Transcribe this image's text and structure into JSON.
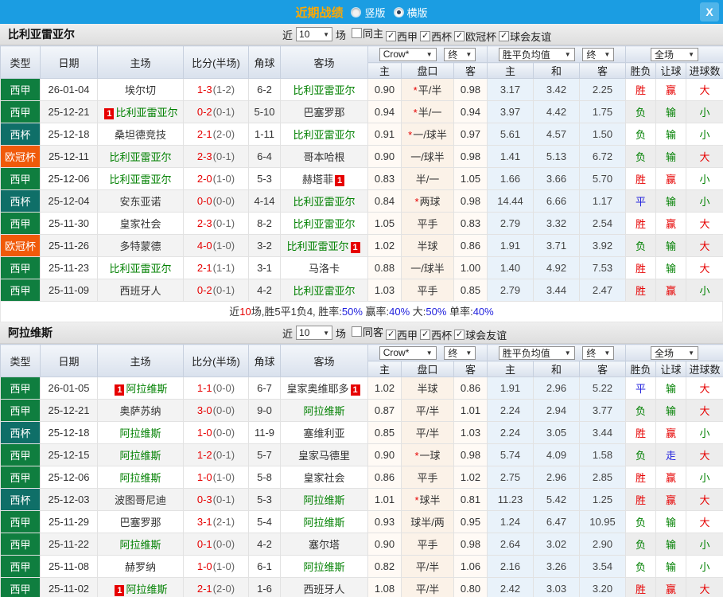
{
  "titlebar": {
    "title": "近期战绩",
    "radios": [
      {
        "label": "竖版",
        "selected": false
      },
      {
        "label": "横版",
        "selected": true
      }
    ],
    "close_icon": "X"
  },
  "colors": {
    "type": {
      "西甲": "#0F7E3F",
      "西杯": "#0F6F68",
      "欧冠杯": "#F05A0A"
    },
    "result": {
      "胜": "#E60000",
      "平": "#2222DD",
      "负": "#008000",
      "赢": "#E60000",
      "走": "#2222DD",
      "输": "#008000",
      "大": "#E60000",
      "小": "#008000"
    }
  },
  "table_head": {
    "cols": [
      "类型",
      "日期",
      "主场",
      "比分(半场)",
      "角球",
      "客场"
    ],
    "sub": [
      "主",
      "盘口",
      "客",
      "主",
      "和",
      "客",
      "胜负",
      "让球",
      "进球数"
    ],
    "selects": {
      "odds": "Crow*",
      "fin1": "终",
      "avg": "胜平负均值",
      "fin2": "终",
      "full": "全场"
    }
  },
  "sections": [
    {
      "team": "比利亚雷亚尔",
      "filter": {
        "near": "近",
        "count": "10",
        "games": "场",
        "checkboxes": [
          {
            "label": "同主",
            "checked": false
          },
          {
            "label": "西甲",
            "checked": true
          },
          {
            "label": "西杯",
            "checked": true
          },
          {
            "label": "欧冠杯",
            "checked": true
          },
          {
            "label": "球会友谊",
            "checked": true
          }
        ]
      },
      "rows": [
        {
          "type": "西甲",
          "date": "26-01-04",
          "home": "埃尔切",
          "home_green": false,
          "home_badge": false,
          "score": "1-3",
          "half": "(1-2)",
          "corners": "6-2",
          "away": "比利亚雷亚尔",
          "away_green": true,
          "away_badge": false,
          "odds_home": "0.90",
          "handicap": "平/半",
          "handicap_star": true,
          "odds_away": "0.98",
          "avg_home": "3.17",
          "avg_draw": "3.42",
          "avg_away": "2.25",
          "res_wdl": "胜",
          "res_handicap": "赢",
          "res_goals": "大"
        },
        {
          "type": "西甲",
          "date": "25-12-21",
          "home": "比利亚雷亚尔",
          "home_green": true,
          "home_badge": true,
          "score": "0-2",
          "half": "(0-1)",
          "corners": "5-10",
          "away": "巴塞罗那",
          "away_green": false,
          "away_badge": false,
          "odds_home": "0.94",
          "handicap": "半/一",
          "handicap_star": true,
          "odds_away": "0.94",
          "avg_home": "3.97",
          "avg_draw": "4.42",
          "avg_away": "1.75",
          "res_wdl": "负",
          "res_handicap": "输",
          "res_goals": "小"
        },
        {
          "type": "西杯",
          "date": "25-12-18",
          "home": "桑坦德竞技",
          "home_green": false,
          "home_badge": false,
          "score": "2-1",
          "half": "(2-0)",
          "corners": "1-11",
          "away": "比利亚雷亚尔",
          "away_green": true,
          "away_badge": false,
          "odds_home": "0.91",
          "handicap": "一/球半",
          "handicap_star": true,
          "odds_away": "0.97",
          "avg_home": "5.61",
          "avg_draw": "4.57",
          "avg_away": "1.50",
          "res_wdl": "负",
          "res_handicap": "输",
          "res_goals": "小"
        },
        {
          "type": "欧冠杯",
          "date": "25-12-11",
          "home": "比利亚雷亚尔",
          "home_green": true,
          "home_badge": false,
          "score": "2-3",
          "half": "(0-1)",
          "corners": "6-4",
          "away": "哥本哈根",
          "away_green": false,
          "away_badge": false,
          "odds_home": "0.90",
          "handicap": "一/球半",
          "handicap_star": false,
          "odds_away": "0.98",
          "avg_home": "1.41",
          "avg_draw": "5.13",
          "avg_away": "6.72",
          "res_wdl": "负",
          "res_handicap": "输",
          "res_goals": "大"
        },
        {
          "type": "西甲",
          "date": "25-12-06",
          "home": "比利亚雷亚尔",
          "home_green": true,
          "home_badge": false,
          "score": "2-0",
          "half": "(1-0)",
          "corners": "5-3",
          "away": "赫塔菲",
          "away_green": false,
          "away_badge": true,
          "odds_home": "0.83",
          "handicap": "半/一",
          "handicap_star": false,
          "odds_away": "1.05",
          "avg_home": "1.66",
          "avg_draw": "3.66",
          "avg_away": "5.70",
          "res_wdl": "胜",
          "res_handicap": "赢",
          "res_goals": "小"
        },
        {
          "type": "西杯",
          "date": "25-12-04",
          "home": "安东亚诺",
          "home_green": false,
          "home_badge": false,
          "score": "0-0",
          "half": "(0-0)",
          "corners": "4-14",
          "away": "比利亚雷亚尔",
          "away_green": true,
          "away_badge": false,
          "odds_home": "0.84",
          "handicap": "两球",
          "handicap_star": true,
          "odds_away": "0.98",
          "avg_home": "14.44",
          "avg_draw": "6.66",
          "avg_away": "1.17",
          "res_wdl": "平",
          "res_handicap": "输",
          "res_goals": "小"
        },
        {
          "type": "西甲",
          "date": "25-11-30",
          "home": "皇家社会",
          "home_green": false,
          "home_badge": false,
          "score": "2-3",
          "half": "(0-1)",
          "corners": "8-2",
          "away": "比利亚雷亚尔",
          "away_green": true,
          "away_badge": false,
          "odds_home": "1.05",
          "handicap": "平手",
          "handicap_star": false,
          "odds_away": "0.83",
          "avg_home": "2.79",
          "avg_draw": "3.32",
          "avg_away": "2.54",
          "res_wdl": "胜",
          "res_handicap": "赢",
          "res_goals": "大"
        },
        {
          "type": "欧冠杯",
          "date": "25-11-26",
          "home": "多特蒙德",
          "home_green": false,
          "home_badge": false,
          "score": "4-0",
          "half": "(1-0)",
          "corners": "3-2",
          "away": "比利亚雷亚尔",
          "away_green": true,
          "away_badge": true,
          "odds_home": "1.02",
          "handicap": "半球",
          "handicap_star": false,
          "odds_away": "0.86",
          "avg_home": "1.91",
          "avg_draw": "3.71",
          "avg_away": "3.92",
          "res_wdl": "负",
          "res_handicap": "输",
          "res_goals": "大"
        },
        {
          "type": "西甲",
          "date": "25-11-23",
          "home": "比利亚雷亚尔",
          "home_green": true,
          "home_badge": false,
          "score": "2-1",
          "half": "(1-1)",
          "corners": "3-1",
          "away": "马洛卡",
          "away_green": false,
          "away_badge": false,
          "odds_home": "0.88",
          "handicap": "一/球半",
          "handicap_star": false,
          "odds_away": "1.00",
          "avg_home": "1.40",
          "avg_draw": "4.92",
          "avg_away": "7.53",
          "res_wdl": "胜",
          "res_handicap": "输",
          "res_goals": "大"
        },
        {
          "type": "西甲",
          "date": "25-11-09",
          "home": "西班牙人",
          "home_green": false,
          "home_badge": false,
          "score": "0-2",
          "half": "(0-1)",
          "corners": "4-2",
          "away": "比利亚雷亚尔",
          "away_green": true,
          "away_badge": false,
          "odds_home": "1.03",
          "handicap": "平手",
          "handicap_star": false,
          "odds_away": "0.85",
          "avg_home": "2.79",
          "avg_draw": "3.44",
          "avg_away": "2.47",
          "res_wdl": "胜",
          "res_handicap": "赢",
          "res_goals": "小"
        }
      ],
      "summary": {
        "parts": [
          {
            "text": "近",
            "color": "#333333"
          },
          {
            "text": "10",
            "color": "#E60000"
          },
          {
            "text": "场,胜5平1负4, 胜率:",
            "color": "#333333"
          },
          {
            "text": "50%",
            "color": "#2222DD"
          },
          {
            "text": " 赢率:",
            "color": "#333333"
          },
          {
            "text": "40%",
            "color": "#2222DD"
          },
          {
            "text": " 大:",
            "color": "#333333"
          },
          {
            "text": "50%",
            "color": "#2222DD"
          },
          {
            "text": " 单率:",
            "color": "#333333"
          },
          {
            "text": "40%",
            "color": "#2222DD"
          }
        ]
      }
    },
    {
      "team": "阿拉维斯",
      "filter": {
        "near": "近",
        "count": "10",
        "games": "场",
        "checkboxes": [
          {
            "label": "同客",
            "checked": false
          },
          {
            "label": "西甲",
            "checked": true
          },
          {
            "label": "西杯",
            "checked": true
          },
          {
            "label": "球会友谊",
            "checked": true
          }
        ]
      },
      "rows": [
        {
          "type": "西甲",
          "date": "26-01-05",
          "home": "阿拉维斯",
          "home_green": true,
          "home_badge": true,
          "score": "1-1",
          "half": "(0-0)",
          "corners": "6-7",
          "away": "皇家奥维耶多",
          "away_green": false,
          "away_badge": true,
          "odds_home": "1.02",
          "handicap": "半球",
          "handicap_star": false,
          "odds_away": "0.86",
          "avg_home": "1.91",
          "avg_draw": "2.96",
          "avg_away": "5.22",
          "res_wdl": "平",
          "res_handicap": "输",
          "res_goals": "大"
        },
        {
          "type": "西甲",
          "date": "25-12-21",
          "home": "奥萨苏纳",
          "home_green": false,
          "home_badge": false,
          "score": "3-0",
          "half": "(0-0)",
          "corners": "9-0",
          "away": "阿拉维斯",
          "away_green": true,
          "away_badge": false,
          "odds_home": "0.87",
          "handicap": "平/半",
          "handicap_star": false,
          "odds_away": "1.01",
          "avg_home": "2.24",
          "avg_draw": "2.94",
          "avg_away": "3.77",
          "res_wdl": "负",
          "res_handicap": "输",
          "res_goals": "大"
        },
        {
          "type": "西杯",
          "date": "25-12-18",
          "home": "阿拉维斯",
          "home_green": true,
          "home_badge": false,
          "score": "1-0",
          "half": "(0-0)",
          "corners": "11-9",
          "away": "塞维利亚",
          "away_green": false,
          "away_badge": false,
          "odds_home": "0.85",
          "handicap": "平/半",
          "handicap_star": false,
          "odds_away": "1.03",
          "avg_home": "2.24",
          "avg_draw": "3.05",
          "avg_away": "3.44",
          "res_wdl": "胜",
          "res_handicap": "赢",
          "res_goals": "小"
        },
        {
          "type": "西甲",
          "date": "25-12-15",
          "home": "阿拉维斯",
          "home_green": true,
          "home_badge": false,
          "score": "1-2",
          "half": "(0-1)",
          "corners": "5-7",
          "away": "皇家马德里",
          "away_green": false,
          "away_badge": false,
          "odds_home": "0.90",
          "handicap": "一球",
          "handicap_star": true,
          "odds_away": "0.98",
          "avg_home": "5.74",
          "avg_draw": "4.09",
          "avg_away": "1.58",
          "res_wdl": "负",
          "res_handicap": "走",
          "res_goals": "大"
        },
        {
          "type": "西甲",
          "date": "25-12-06",
          "home": "阿拉维斯",
          "home_green": true,
          "home_badge": false,
          "score": "1-0",
          "half": "(1-0)",
          "corners": "5-8",
          "away": "皇家社会",
          "away_green": false,
          "away_badge": false,
          "odds_home": "0.86",
          "handicap": "平手",
          "handicap_star": false,
          "odds_away": "1.02",
          "avg_home": "2.75",
          "avg_draw": "2.96",
          "avg_away": "2.85",
          "res_wdl": "胜",
          "res_handicap": "赢",
          "res_goals": "小"
        },
        {
          "type": "西杯",
          "date": "25-12-03",
          "home": "波图哥尼迪",
          "home_green": false,
          "home_badge": false,
          "score": "0-3",
          "half": "(0-1)",
          "corners": "5-3",
          "away": "阿拉维斯",
          "away_green": true,
          "away_badge": false,
          "odds_home": "1.01",
          "handicap": "球半",
          "handicap_star": true,
          "odds_away": "0.81",
          "avg_home": "11.23",
          "avg_draw": "5.42",
          "avg_away": "1.25",
          "res_wdl": "胜",
          "res_handicap": "赢",
          "res_goals": "大"
        },
        {
          "type": "西甲",
          "date": "25-11-29",
          "home": "巴塞罗那",
          "home_green": false,
          "home_badge": false,
          "score": "3-1",
          "half": "(2-1)",
          "corners": "5-4",
          "away": "阿拉维斯",
          "away_green": true,
          "away_badge": false,
          "odds_home": "0.93",
          "handicap": "球半/两",
          "handicap_star": false,
          "odds_away": "0.95",
          "avg_home": "1.24",
          "avg_draw": "6.47",
          "avg_away": "10.95",
          "res_wdl": "负",
          "res_handicap": "输",
          "res_goals": "大"
        },
        {
          "type": "西甲",
          "date": "25-11-22",
          "home": "阿拉维斯",
          "home_green": true,
          "home_badge": false,
          "score": "0-1",
          "half": "(0-0)",
          "corners": "4-2",
          "away": "塞尔塔",
          "away_green": false,
          "away_badge": false,
          "odds_home": "0.90",
          "handicap": "平手",
          "handicap_star": false,
          "odds_away": "0.98",
          "avg_home": "2.64",
          "avg_draw": "3.02",
          "avg_away": "2.90",
          "res_wdl": "负",
          "res_handicap": "输",
          "res_goals": "小"
        },
        {
          "type": "西甲",
          "date": "25-11-08",
          "home": "赫罗纳",
          "home_green": false,
          "home_badge": false,
          "score": "1-0",
          "half": "(1-0)",
          "corners": "6-1",
          "away": "阿拉维斯",
          "away_green": true,
          "away_badge": false,
          "odds_home": "0.82",
          "handicap": "平/半",
          "handicap_star": false,
          "odds_away": "1.06",
          "avg_home": "2.16",
          "avg_draw": "3.26",
          "avg_away": "3.54",
          "res_wdl": "负",
          "res_handicap": "输",
          "res_goals": "小"
        },
        {
          "type": "西甲",
          "date": "25-11-02",
          "home": "阿拉维斯",
          "home_green": true,
          "home_badge": true,
          "score": "2-1",
          "half": "(2-0)",
          "corners": "1-6",
          "away": "西班牙人",
          "away_green": false,
          "away_badge": false,
          "odds_home": "1.08",
          "handicap": "平/半",
          "handicap_star": false,
          "odds_away": "0.80",
          "avg_home": "2.42",
          "avg_draw": "3.03",
          "avg_away": "3.20",
          "res_wdl": "胜",
          "res_handicap": "赢",
          "res_goals": "大"
        }
      ]
    }
  ]
}
